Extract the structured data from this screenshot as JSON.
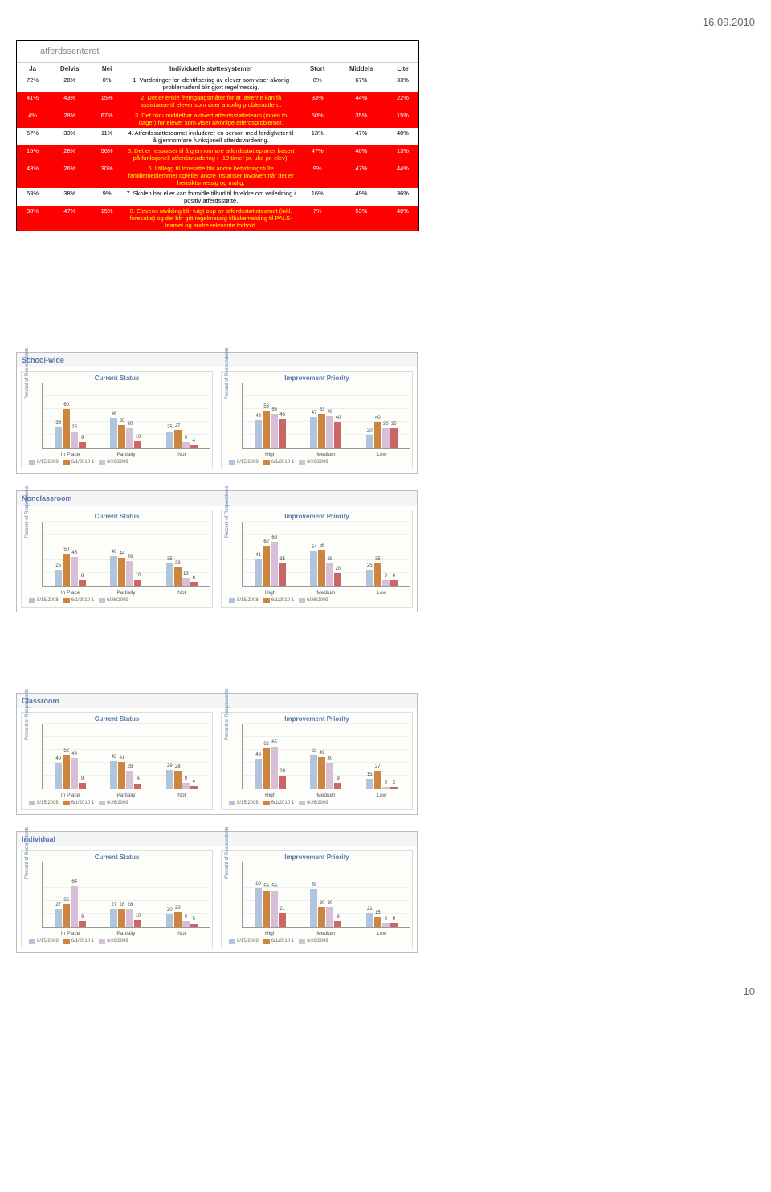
{
  "page_date": "16.09.2010",
  "page_number": "10",
  "logo_text": "atferdssenteret",
  "table": {
    "headers_left": [
      "Ja",
      "Delvis",
      "Nei"
    ],
    "headers_mid": "Individuelle støttesystemer",
    "headers_right": [
      "Stort",
      "Middels",
      "Lite"
    ],
    "rows": [
      {
        "left": [
          "72%",
          "28%",
          "0%"
        ],
        "desc": "1.  Vurderinger for identifisering av elever som viser alvorlig problematferd blir gjort regelmessig.",
        "right": [
          "0%",
          "67%",
          "33%"
        ],
        "cls": "row-white"
      },
      {
        "left": [
          "41%",
          "43%",
          "15%"
        ],
        "desc": "2.  Det er enkle fremgangsmåter for at lærerne kan få assistanse til elever som viser alvorlig problematferd.",
        "right": [
          "33%",
          "44%",
          "22%"
        ],
        "cls": "row-red"
      },
      {
        "left": [
          "4%",
          "28%",
          "67%"
        ],
        "desc": "3.  Det blir umiddelbar aktivert atferdsstøtteteam (innen to dager) for elever som viser alvorlige atferdsproblemer.",
        "right": [
          "50%",
          "35%",
          "15%"
        ],
        "cls": "row-red"
      },
      {
        "left": [
          "57%",
          "33%",
          "11%"
        ],
        "desc": "4.  Atferdsstøtteteamet inkluderer en person med ferdigheter til å gjennomføre funksjonell atferdsvurdering.",
        "right": [
          "13%",
          "47%",
          "40%"
        ],
        "cls": "row-white"
      },
      {
        "left": [
          "15%",
          "28%",
          "56%"
        ],
        "desc": "5.  Det er ressurser til å gjennomføre atferdsstøtteplaner basert på funksjonell atferdsvurdering (~10 timer pr. uke pr. elev).",
        "right": [
          "47%",
          "40%",
          "13%"
        ],
        "cls": "row-red"
      },
      {
        "left": [
          "43%",
          "26%",
          "30%"
        ],
        "desc": "6.  I tillegg til foresatte blir andre betydningsfulle familiemedlemmer og/eller andre instanser involvert når det er hensiktsmessig og mulig.",
        "right": [
          "9%",
          "47%",
          "44%"
        ],
        "cls": "row-red"
      },
      {
        "left": [
          "53%",
          "38%",
          "9%"
        ],
        "desc": "7.  Skolen har eller kan formidle tilbud til foreldre om veiledning i positiv atferdsstøtte.",
        "right": [
          "16%",
          "49%",
          "36%"
        ],
        "cls": "row-white"
      },
      {
        "left": [
          "38%",
          "47%",
          "15%"
        ],
        "desc": "8.  Elevens utvikling blir fulgt opp av atferdsstøtteteamet (inkl. foresatte) og det blir gitt regelmessig tilbakemelding til PALS-teamet og andre relevante forhold.",
        "right": [
          "7%",
          "53%",
          "40%"
        ],
        "cls": "row-red"
      }
    ]
  },
  "chart_colors": [
    "#b0c4de",
    "#cd853f",
    "#d8bfd8",
    "#cc6666"
  ],
  "chart_meta": {
    "y_label": "Percent of Respondents",
    "legend": [
      "8/15/2008",
      "6/1/2010 1",
      "6/26/2009",
      ""
    ],
    "left_title": "Current Status",
    "right_title": "Improvement Priority"
  },
  "sections": [
    {
      "name": "School-wide",
      "left": {
        "groups": [
          "In Place",
          "Partially",
          "Not"
        ],
        "series": [
          [
            33,
            46,
            25
          ],
          [
            60,
            35,
            27
          ],
          [
            25,
            30,
            9
          ],
          [
            9,
            10,
            4
          ]
        ]
      },
      "right": {
        "groups": [
          "High",
          "Medium",
          "Low"
        ],
        "series": [
          [
            43,
            47,
            20
          ],
          [
            58,
            53,
            40
          ],
          [
            53,
            49,
            30
          ],
          [
            45,
            40,
            30
          ]
        ]
      }
    },
    {
      "name": "Nonclassroom",
      "left": {
        "groups": [
          "In Place",
          "Partially",
          "Not"
        ],
        "series": [
          [
            25,
            46,
            35
          ],
          [
            50,
            44,
            29
          ],
          [
            45,
            39,
            13
          ],
          [
            9,
            10,
            6
          ]
        ]
      },
      "right": {
        "groups": [
          "High",
          "Medium",
          "Low"
        ],
        "series": [
          [
            41,
            54,
            25
          ],
          [
            62,
            56,
            35
          ],
          [
            69,
            35,
            9
          ],
          [
            35,
            20,
            9
          ]
        ]
      }
    },
    {
      "name": "Classroom",
      "left": {
        "groups": [
          "In Place",
          "Partially",
          "Not"
        ],
        "series": [
          [
            40,
            43,
            29
          ],
          [
            52,
            41,
            28
          ],
          [
            48,
            28,
            9
          ],
          [
            9,
            8,
            4
          ]
        ]
      },
      "right": {
        "groups": [
          "High",
          "Medium",
          "Low"
        ],
        "series": [
          [
            46,
            53,
            15
          ],
          [
            62,
            49,
            27
          ],
          [
            65,
            40,
            3
          ],
          [
            20,
            9,
            3
          ]
        ]
      }
    },
    {
      "name": "Individual",
      "left": {
        "groups": [
          "In Place",
          "Partially",
          "Not"
        ],
        "series": [
          [
            27,
            27,
            20
          ],
          [
            35,
            28,
            23
          ],
          [
            64,
            28,
            9
          ],
          [
            9,
            10,
            5
          ]
        ]
      },
      "right": {
        "groups": [
          "High",
          "Medium",
          "Low"
        ],
        "series": [
          [
            60,
            59,
            21
          ],
          [
            56,
            30,
            15
          ],
          [
            56,
            30,
            6
          ],
          [
            21,
            9,
            6
          ]
        ]
      }
    }
  ]
}
